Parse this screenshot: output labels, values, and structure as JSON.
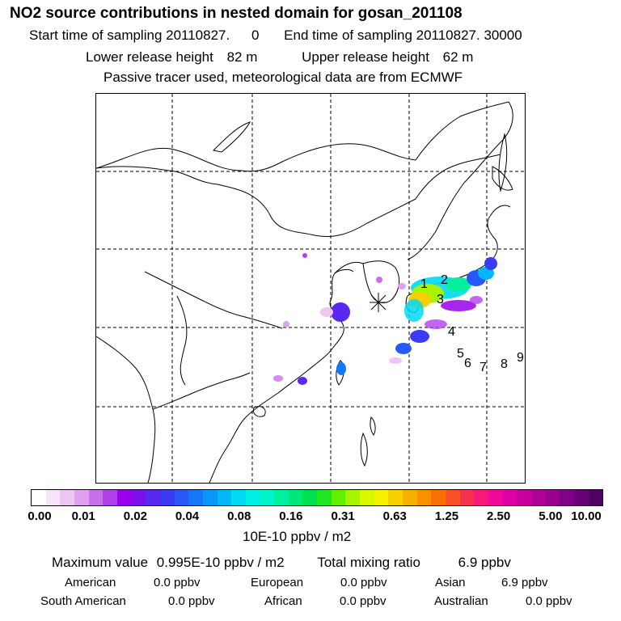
{
  "header": {
    "title": "NO2 source contributions in nested domain for gosan_201108",
    "start_label": "Start time of sampling 20110827.",
    "start_value": "0",
    "end_label": "End time of sampling 20110827. 30000",
    "lower_label": "Lower release height",
    "lower_value": "82 m",
    "upper_label": "Upper release height",
    "upper_value": "62 m",
    "tracer_note": "Passive tracer used, meteorological data are from ECMWF"
  },
  "map": {
    "station_marker": "asterisk-icon",
    "trajectory_labels": [
      "1",
      "2",
      "3",
      "4",
      "5",
      "6",
      "7",
      "8",
      "9"
    ]
  },
  "colorbar": {
    "tick_labels": [
      "0.00",
      "0.01",
      "0.02",
      "0.04",
      "0.08",
      "0.16",
      "0.31",
      "0.63",
      "1.25",
      "2.50",
      "5.00",
      "10.00"
    ],
    "colors": [
      "#ffffff",
      "#f8e4f8",
      "#eec6f4",
      "#e0a0f0",
      "#c870ec",
      "#b040ec",
      "#9a00ec",
      "#7a10ec",
      "#5a28f0",
      "#3a3cf4",
      "#2858f8",
      "#1478f8",
      "#0a98f8",
      "#00b8f8",
      "#00d8f4",
      "#00f0e8",
      "#00f4c8",
      "#00f0a0",
      "#00e878",
      "#00e050",
      "#20e820",
      "#60f000",
      "#a8f400",
      "#d8f800",
      "#f8f000",
      "#f8d000",
      "#f8b000",
      "#f89000",
      "#f87000",
      "#f85028",
      "#f83050",
      "#f81878",
      "#f00898",
      "#e000a8",
      "#c800a0",
      "#b00098",
      "#980090",
      "#800088",
      "#680078",
      "#500060"
    ],
    "units": "10E-10 ppbv / m2"
  },
  "summary": {
    "max_label": "Maximum value",
    "max_value": "0.995E-10 ppbv / m2",
    "total_label": "Total mixing ratio",
    "total_value": "6.9 ppbv",
    "regions": [
      {
        "name": "American",
        "value": "0.0 ppbv"
      },
      {
        "name": "European",
        "value": "0.0 ppbv"
      },
      {
        "name": "Asian",
        "value": "6.9 ppbv"
      },
      {
        "name": "South American",
        "value": "0.0 ppbv"
      },
      {
        "name": "African",
        "value": "0.0 ppbv"
      },
      {
        "name": "Australian",
        "value": "0.0 ppbv"
      }
    ]
  }
}
